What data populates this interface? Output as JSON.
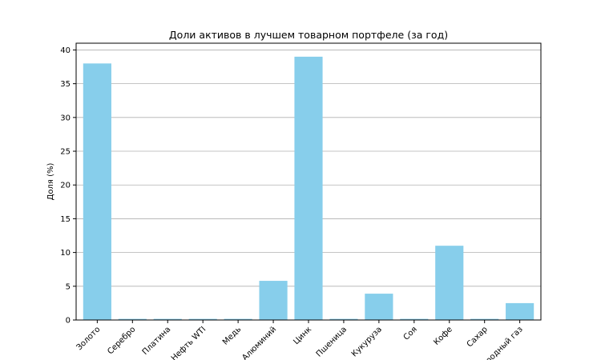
{
  "chart_data": {
    "type": "bar",
    "title": "Доли активов в лучшем товарном портфеле (за год)",
    "xlabel": "",
    "ylabel": "Доля (%)",
    "categories": [
      "Золото",
      "Серебро",
      "Платина",
      "Нефть WTI",
      "Медь",
      "Алюминий",
      "Цинк",
      "Пшеница",
      "Кукуруза",
      "Соя",
      "Кофе",
      "Сахар",
      "Природный газ"
    ],
    "values": [
      38.0,
      0.05,
      0.05,
      0.05,
      0.05,
      5.8,
      39.0,
      0.05,
      3.9,
      0.05,
      11.0,
      0.05,
      2.5
    ],
    "ylim": [
      0,
      41
    ],
    "yticks": [
      0,
      5,
      10,
      15,
      20,
      25,
      30,
      35,
      40
    ],
    "grid": "y",
    "bar_color": "#87ceeb",
    "grid_color": "#b0b0b0"
  }
}
